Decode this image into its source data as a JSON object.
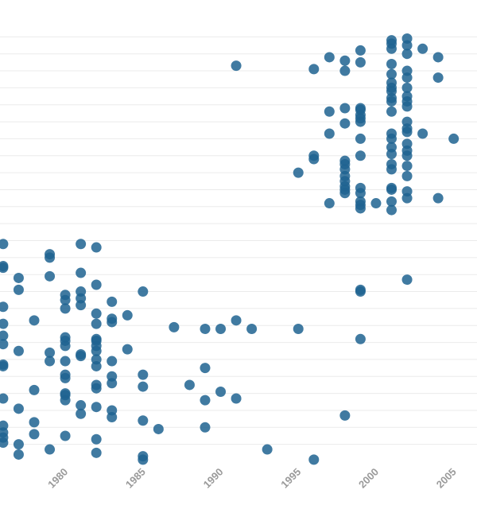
{
  "chart_data": {
    "type": "scatter",
    "title": "",
    "xlabel": "",
    "ylabel": "",
    "x_ticks": [
      "1980",
      "1985",
      "1990",
      "1995",
      "2000",
      "2005"
    ],
    "x_tick_values": [
      1980,
      1985,
      1990,
      1995,
      2000,
      2005
    ],
    "xlim": [
      1975.8,
      2006.5
    ],
    "ylim": [
      0,
      26
    ],
    "y_gridlines": [
      1,
      2,
      3,
      4,
      5,
      6,
      7,
      8,
      9,
      10,
      11,
      12,
      13,
      14,
      15,
      16,
      17,
      18,
      19,
      20,
      21,
      22,
      23,
      24,
      25
    ],
    "grid": true,
    "legend": "none",
    "point_color": "#1f6391",
    "series": [
      {
        "points": [
          [
            1976,
            12.8
          ],
          [
            1976,
            11.5
          ],
          [
            1976,
            11.4
          ],
          [
            1976,
            9.1
          ],
          [
            1976,
            8.1
          ],
          [
            1976,
            7.4
          ],
          [
            1976,
            6.9
          ],
          [
            1976,
            5.7
          ],
          [
            1976,
            5.6
          ],
          [
            1976,
            3.7
          ],
          [
            1976,
            2.1
          ],
          [
            1976,
            1.7
          ],
          [
            1976,
            1.4
          ],
          [
            1976,
            1.1
          ],
          [
            1977,
            10.8
          ],
          [
            1977,
            10.1
          ],
          [
            1977,
            6.5
          ],
          [
            1977,
            3.1
          ],
          [
            1977,
            1.0
          ],
          [
            1977,
            0.4
          ],
          [
            1978,
            8.3
          ],
          [
            1978,
            4.2
          ],
          [
            1978,
            2.3
          ],
          [
            1978,
            1.6
          ],
          [
            1979,
            12.2
          ],
          [
            1979,
            12.0
          ],
          [
            1979,
            10.9
          ],
          [
            1979,
            6.4
          ],
          [
            1979,
            5.9
          ],
          [
            1979,
            0.7
          ],
          [
            1980,
            9.8
          ],
          [
            1980,
            9.5
          ],
          [
            1980,
            9.0
          ],
          [
            1980,
            7.3
          ],
          [
            1980,
            7.1
          ],
          [
            1980,
            6.8
          ],
          [
            1980,
            5.9
          ],
          [
            1980,
            5.1
          ],
          [
            1980,
            4.9
          ],
          [
            1980,
            4.0
          ],
          [
            1980,
            3.9
          ],
          [
            1980,
            3.6
          ],
          [
            1980,
            1.5
          ],
          [
            1981,
            12.8
          ],
          [
            1981,
            11.1
          ],
          [
            1981,
            10.0
          ],
          [
            1981,
            9.6
          ],
          [
            1981,
            9.2
          ],
          [
            1981,
            6.3
          ],
          [
            1981,
            6.2
          ],
          [
            1981,
            3.3
          ],
          [
            1981,
            2.8
          ],
          [
            1982,
            12.6
          ],
          [
            1982,
            10.4
          ],
          [
            1982,
            8.7
          ],
          [
            1982,
            8.1
          ],
          [
            1982,
            7.2
          ],
          [
            1982,
            7.1
          ],
          [
            1982,
            6.8
          ],
          [
            1982,
            6.5
          ],
          [
            1982,
            6.0
          ],
          [
            1982,
            5.6
          ],
          [
            1982,
            4.5
          ],
          [
            1982,
            4.3
          ],
          [
            1982,
            3.2
          ],
          [
            1982,
            1.3
          ],
          [
            1982,
            0.5
          ],
          [
            1983,
            9.4
          ],
          [
            1983,
            8.4
          ],
          [
            1983,
            8.2
          ],
          [
            1983,
            5.9
          ],
          [
            1983,
            5.0
          ],
          [
            1983,
            4.6
          ],
          [
            1983,
            3.0
          ],
          [
            1983,
            2.6
          ],
          [
            1984,
            8.6
          ],
          [
            1984,
            6.6
          ],
          [
            1985,
            10.0
          ],
          [
            1985,
            5.1
          ],
          [
            1985,
            4.4
          ],
          [
            1985,
            2.4
          ],
          [
            1985,
            0.3
          ],
          [
            1985,
            0.1
          ],
          [
            1986,
            1.9
          ],
          [
            1987,
            7.9
          ],
          [
            1988,
            4.5
          ],
          [
            1989,
            7.8
          ],
          [
            1989,
            5.5
          ],
          [
            1989,
            3.6
          ],
          [
            1989,
            2.0
          ],
          [
            1990,
            7.8
          ],
          [
            1990,
            4.1
          ],
          [
            1991,
            23.3
          ],
          [
            1991,
            8.3
          ],
          [
            1991,
            3.7
          ],
          [
            1992,
            7.8
          ],
          [
            1993,
            0.7
          ],
          [
            1995,
            17.0
          ],
          [
            1995,
            7.8
          ],
          [
            1996,
            23.1
          ],
          [
            1996,
            18.0
          ],
          [
            1996,
            17.8
          ],
          [
            1996,
            0.1
          ],
          [
            1997,
            23.8
          ],
          [
            1997,
            20.6
          ],
          [
            1997,
            19.3
          ],
          [
            1997,
            15.2
          ],
          [
            1998,
            23.6
          ],
          [
            1998,
            23.0
          ],
          [
            1998,
            20.8
          ],
          [
            1998,
            19.9
          ],
          [
            1998,
            17.7
          ],
          [
            1998,
            17.5
          ],
          [
            1998,
            17.2
          ],
          [
            1998,
            16.8
          ],
          [
            1998,
            16.5
          ],
          [
            1998,
            16.2
          ],
          [
            1998,
            16.0
          ],
          [
            1998,
            15.8
          ],
          [
            1998,
            2.7
          ],
          [
            1999,
            24.2
          ],
          [
            1999,
            23.5
          ],
          [
            1999,
            20.8
          ],
          [
            1999,
            20.7
          ],
          [
            1999,
            20.4
          ],
          [
            1999,
            20.2
          ],
          [
            1999,
            20.0
          ],
          [
            1999,
            19.0
          ],
          [
            1999,
            18.0
          ],
          [
            1999,
            16.1
          ],
          [
            1999,
            15.8
          ],
          [
            1999,
            15.3
          ],
          [
            1999,
            15.1
          ],
          [
            1999,
            14.9
          ],
          [
            1999,
            10.1
          ],
          [
            1999,
            10.0
          ],
          [
            1999,
            7.2
          ],
          [
            2000,
            15.2
          ],
          [
            2001,
            24.8
          ],
          [
            2001,
            24.6
          ],
          [
            2001,
            24.3
          ],
          [
            2001,
            23.4
          ],
          [
            2001,
            22.8
          ],
          [
            2001,
            22.3
          ],
          [
            2001,
            22.0
          ],
          [
            2001,
            21.8
          ],
          [
            2001,
            21.4
          ],
          [
            2001,
            21.2
          ],
          [
            2001,
            20.6
          ],
          [
            2001,
            19.3
          ],
          [
            2001,
            19.0
          ],
          [
            2001,
            18.5
          ],
          [
            2001,
            18.1
          ],
          [
            2001,
            17.5
          ],
          [
            2001,
            17.2
          ],
          [
            2001,
            16.1
          ],
          [
            2001,
            16.0
          ],
          [
            2001,
            15.3
          ],
          [
            2001,
            14.8
          ],
          [
            2002,
            24.9
          ],
          [
            2002,
            24.5
          ],
          [
            2002,
            24.0
          ],
          [
            2002,
            23.0
          ],
          [
            2002,
            22.6
          ],
          [
            2002,
            22.0
          ],
          [
            2002,
            21.5
          ],
          [
            2002,
            21.2
          ],
          [
            2002,
            20.9
          ],
          [
            2002,
            20.0
          ],
          [
            2002,
            19.6
          ],
          [
            2002,
            19.4
          ],
          [
            2002,
            18.7
          ],
          [
            2002,
            18.3
          ],
          [
            2002,
            18.0
          ],
          [
            2002,
            17.4
          ],
          [
            2002,
            16.8
          ],
          [
            2002,
            15.9
          ],
          [
            2002,
            15.5
          ],
          [
            2002,
            10.7
          ],
          [
            2003,
            24.3
          ],
          [
            2003,
            19.3
          ],
          [
            2004,
            23.8
          ],
          [
            2004,
            22.6
          ],
          [
            2004,
            15.5
          ],
          [
            2005,
            19.0
          ]
        ]
      }
    ]
  }
}
